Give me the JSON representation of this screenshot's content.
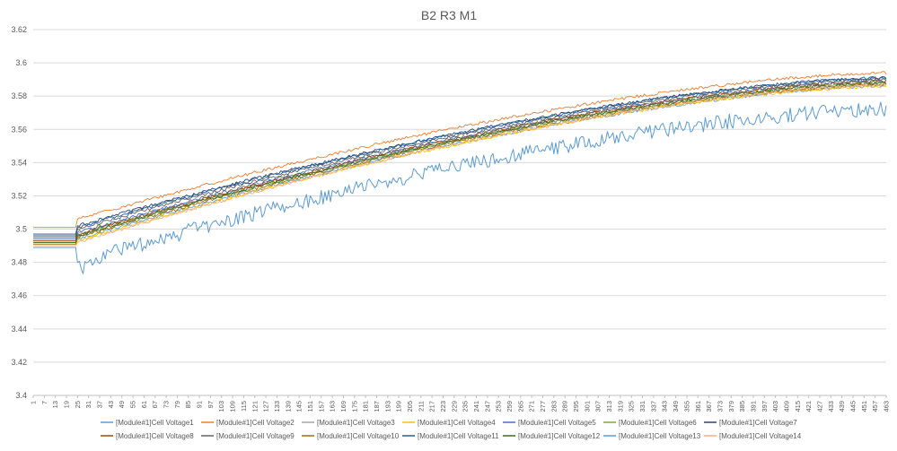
{
  "chart_data": {
    "type": "line",
    "title": "B2 R3 M1",
    "xlabel": "",
    "ylabel": "",
    "ylim": [
      3.4,
      3.62
    ],
    "yticks": [
      "3.4",
      "3.42",
      "3.44",
      "3.46",
      "3.48",
      "3.5",
      "3.52",
      "3.54",
      "3.56",
      "3.58",
      "3.6",
      "3.62"
    ],
    "x_range": [
      1,
      463
    ],
    "xticks": [
      "1",
      "7",
      "13",
      "19",
      "25",
      "31",
      "37",
      "43",
      "49",
      "55",
      "61",
      "67",
      "73",
      "79",
      "85",
      "91",
      "97",
      "103",
      "109",
      "115",
      "121",
      "127",
      "133",
      "139",
      "145",
      "151",
      "157",
      "163",
      "169",
      "175",
      "181",
      "187",
      "193",
      "199",
      "205",
      "211",
      "217",
      "223",
      "229",
      "235",
      "241",
      "247",
      "253",
      "259",
      "265",
      "271",
      "277",
      "283",
      "289",
      "295",
      "301",
      "307",
      "313",
      "319",
      "325",
      "331",
      "337",
      "343",
      "349",
      "355",
      "361",
      "367",
      "373",
      "379",
      "385",
      "391",
      "397",
      "403",
      "409",
      "415",
      "421",
      "427",
      "433",
      "439",
      "445",
      "451",
      "457",
      "463"
    ],
    "grid": true,
    "legend_position": "bottom",
    "series": [
      {
        "name": "[Module#1]Cell Voltage1",
        "color": "#5b9bd5",
        "start": 3.496,
        "jump": 3.494,
        "end": 3.586
      },
      {
        "name": "[Module#1]Cell Voltage2",
        "color": "#ed7d31",
        "start": 3.501,
        "jump": 3.506,
        "end": 3.594
      },
      {
        "name": "[Module#1]Cell Voltage3",
        "color": "#a5a5a5",
        "start": 3.492,
        "jump": 3.497,
        "end": 3.587
      },
      {
        "name": "[Module#1]Cell Voltage4",
        "color": "#ffc000",
        "start": 3.49,
        "jump": 3.493,
        "end": 3.586
      },
      {
        "name": "[Module#1]Cell Voltage5",
        "color": "#4472c4",
        "start": 3.494,
        "jump": 3.498,
        "end": 3.589
      },
      {
        "name": "[Module#1]Cell Voltage6",
        "color": "#70ad47",
        "start": 3.492,
        "jump": 3.496,
        "end": 3.588
      },
      {
        "name": "[Module#1]Cell Voltage7",
        "color": "#264478",
        "start": 3.497,
        "jump": 3.502,
        "end": 3.591
      },
      {
        "name": "[Module#1]Cell Voltage8",
        "color": "#9e480e",
        "start": 3.493,
        "jump": 3.497,
        "end": 3.589
      },
      {
        "name": "[Module#1]Cell Voltage9",
        "color": "#636363",
        "start": 3.495,
        "jump": 3.5,
        "end": 3.59
      },
      {
        "name": "[Module#1]Cell Voltage10",
        "color": "#997300",
        "start": 3.491,
        "jump": 3.495,
        "end": 3.587
      },
      {
        "name": "[Module#1]Cell Voltage11",
        "color": "#255e91",
        "start": 3.496,
        "jump": 3.501,
        "end": 3.591
      },
      {
        "name": "[Module#1]Cell Voltage12",
        "color": "#43682b",
        "start": 3.492,
        "jump": 3.496,
        "end": 3.588
      },
      {
        "name": "[Module#1]Cell Voltage13",
        "color": "#5b9bd5",
        "start": 3.489,
        "jump": 3.48,
        "end": 3.572
      },
      {
        "name": "[Module#1]Cell Voltage14",
        "color": "#f4b183",
        "start": 3.49,
        "jump": 3.492,
        "end": 3.587
      }
    ]
  }
}
